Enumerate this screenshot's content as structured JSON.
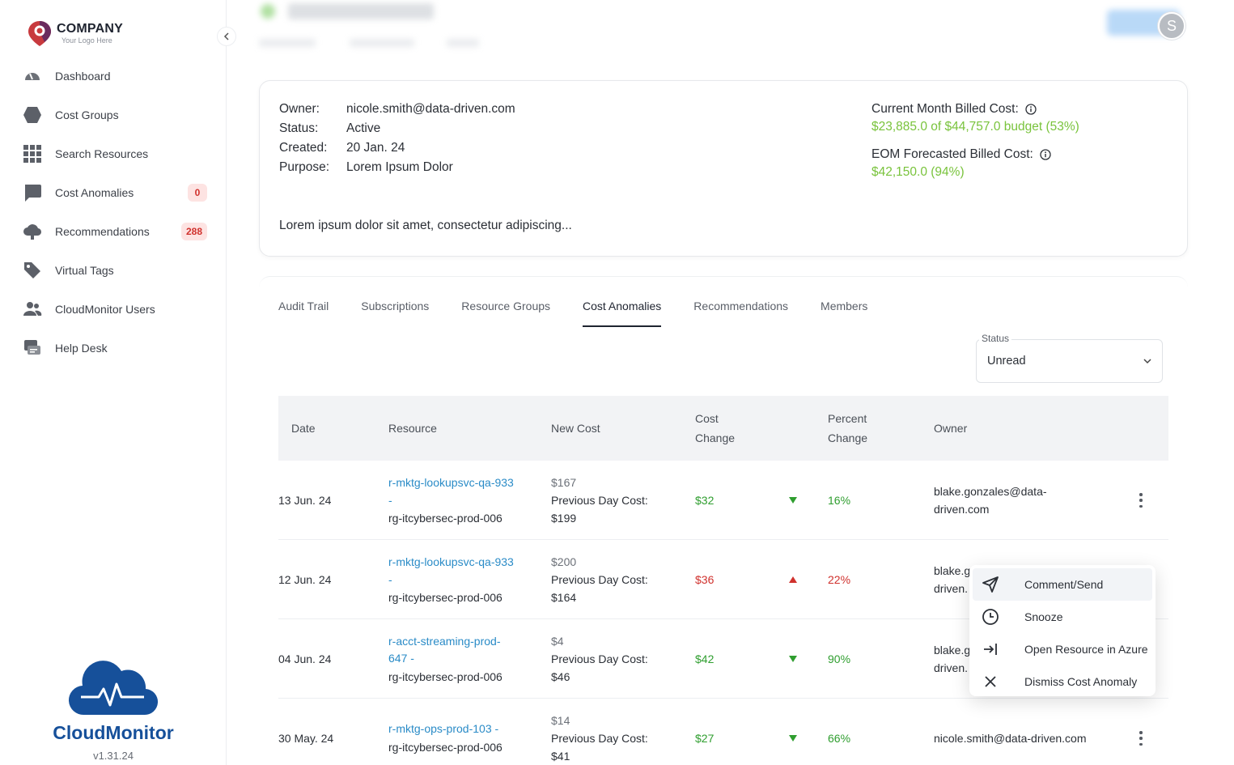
{
  "brand": {
    "name": "COMPANY",
    "tagline": "Your Logo Here"
  },
  "sidebar": {
    "items": [
      {
        "label": "Dashboard",
        "icon": "speedometer-icon"
      },
      {
        "label": "Cost Groups",
        "icon": "hexagon-icon"
      },
      {
        "label": "Search Resources",
        "icon": "grid-icon"
      },
      {
        "label": "Cost Anomalies",
        "icon": "chat-bubble-icon",
        "badge": "0"
      },
      {
        "label": "Recommendations",
        "icon": "cloud-bulb-icon",
        "badge": "288"
      },
      {
        "label": "Virtual Tags",
        "icon": "tag-icon"
      },
      {
        "label": "CloudMonitor Users",
        "icon": "users-icon"
      },
      {
        "label": "Help Desk",
        "icon": "help-desk-icon"
      }
    ],
    "product_name": "CloudMonitor",
    "version": "v1.31.24"
  },
  "header": {
    "avatar_initial": "S"
  },
  "details": {
    "owner_label": "Owner:",
    "owner": "nicole.smith@data-driven.com",
    "status_label": "Status:",
    "status": "Active",
    "created_label": "Created:",
    "created": "20 Jan. 24",
    "purpose_label": "Purpose:",
    "purpose": "Lorem Ipsum Dolor",
    "description": "Lorem ipsum dolor sit amet, consectetur adipiscing...",
    "current_cost_label": "Current Month Billed Cost:",
    "current_cost": "$23,885.0 of $44,757.0 budget (53%)",
    "eom_cost_label": "EOM Forecasted Billed Cost:",
    "eom_cost": "$42,150.0 (94%)"
  },
  "tabs": [
    "Audit Trail",
    "Subscriptions",
    "Resource Groups",
    "Cost Anomalies",
    "Recommendations",
    "Members"
  ],
  "filter": {
    "label": "Status",
    "value": "Unread"
  },
  "table": {
    "headers": {
      "date": "Date",
      "resource": "Resource",
      "new_cost": "New Cost",
      "cost_change_1": "Cost",
      "cost_change_2": "Change",
      "percent_change_1": "Percent",
      "percent_change_2": "Change",
      "owner": "Owner"
    },
    "rows": [
      {
        "date": "13 Jun. 24",
        "res1": "r-mktg-lookupsvc-qa-933",
        "res2": "-",
        "res3": "rg-itcybersec-prod-006",
        "new_cost": "$167",
        "prev_label": "Previous Day Cost:",
        "prev": "$199",
        "change": "$32",
        "dir": "down",
        "pct": "16%",
        "owner1": "blake.gonzales@data-",
        "owner2": "driven.com"
      },
      {
        "date": "12 Jun. 24",
        "res1": "r-mktg-lookupsvc-qa-933",
        "res2": "-",
        "res3": "rg-itcybersec-prod-006",
        "new_cost": "$200",
        "prev_label": "Previous Day Cost:",
        "prev": "$164",
        "change": "$36",
        "dir": "up",
        "pct": "22%",
        "owner1": "blake.g",
        "owner2": "driven."
      },
      {
        "date": "04 Jun. 24",
        "res1": "r-acct-streaming-prod-",
        "res2": "647 -",
        "res3": "rg-itcybersec-prod-006",
        "new_cost": "$4",
        "prev_label": "Previous Day Cost:",
        "prev": "$46",
        "change": "$42",
        "dir": "down",
        "pct": "90%",
        "owner1": "blake.g",
        "owner2": "driven."
      },
      {
        "date": "30 May. 24",
        "res1": "r-mktg-ops-prod-103 -",
        "res2": "",
        "res3": "rg-itcybersec-prod-006",
        "new_cost": "$14",
        "prev_label": "Previous Day Cost:",
        "prev": "$41",
        "change": "$27",
        "dir": "down",
        "pct": "66%",
        "owner1": "nicole.smith@data-driven.com",
        "owner2": ""
      }
    ]
  },
  "context_menu": {
    "items": [
      {
        "label": "Comment/Send",
        "icon": "send-icon"
      },
      {
        "label": "Snooze",
        "icon": "clock-icon"
      },
      {
        "label": "Open Resource in Azure",
        "icon": "open-external-icon"
      },
      {
        "label": "Dismiss Cost Anomaly",
        "icon": "close-icon"
      }
    ]
  },
  "colors": {
    "accent_green": "#79c33c",
    "link": "#2a8bc7",
    "up_red": "#d0312d",
    "down_green": "#2f9e2f",
    "brand_blue": "#16509a"
  }
}
